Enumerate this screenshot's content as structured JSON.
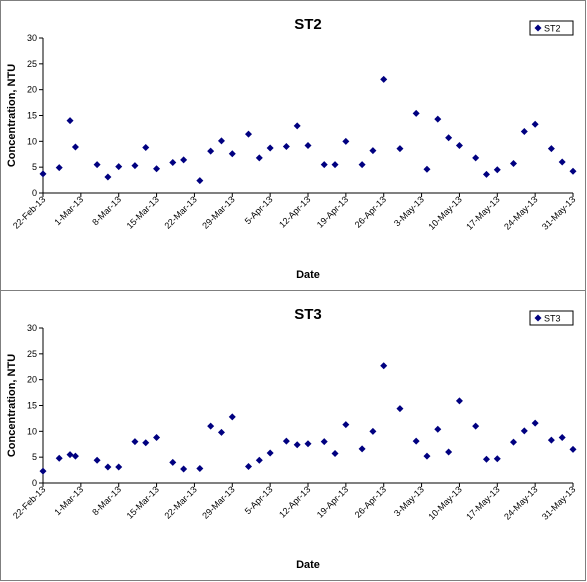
{
  "chart_data": [
    {
      "type": "scatter",
      "title": "ST2",
      "xlabel": "Date",
      "ylabel": "Concentration, NTU",
      "ylim": [
        0,
        30
      ],
      "yticks": [
        0,
        5,
        10,
        15,
        20,
        25,
        30
      ],
      "xlim": [
        "2013-02-22",
        "2013-05-31"
      ],
      "xtick_labels": [
        "22-Feb-13",
        "1-Mar-13",
        "8-Mar-13",
        "15-Mar-13",
        "22-Mar-13",
        "29-Mar-13",
        "5-Apr-13",
        "12-Apr-13",
        "19-Apr-13",
        "26-Apr-13",
        "3-May-13",
        "10-May-13",
        "17-May-13",
        "24-May-13",
        "31-May-13"
      ],
      "grid": false,
      "legend_position": "top-right",
      "marker_color": "#000080",
      "series": [
        {
          "name": "ST2",
          "x": [
            "2013-02-22",
            "2013-02-25",
            "2013-02-27",
            "2013-02-28",
            "2013-03-04",
            "2013-03-06",
            "2013-03-08",
            "2013-03-11",
            "2013-03-13",
            "2013-03-15",
            "2013-03-18",
            "2013-03-20",
            "2013-03-23",
            "2013-03-25",
            "2013-03-27",
            "2013-03-29",
            "2013-04-01",
            "2013-04-03",
            "2013-04-05",
            "2013-04-08",
            "2013-04-10",
            "2013-04-12",
            "2013-04-15",
            "2013-04-17",
            "2013-04-19",
            "2013-04-22",
            "2013-04-24",
            "2013-04-26",
            "2013-04-29",
            "2013-05-02",
            "2013-05-04",
            "2013-05-06",
            "2013-05-08",
            "2013-05-10",
            "2013-05-13",
            "2013-05-15",
            "2013-05-17",
            "2013-05-20",
            "2013-05-22",
            "2013-05-24",
            "2013-05-27",
            "2013-05-29",
            "2013-05-31"
          ],
          "y": [
            3.7,
            4.9,
            14.0,
            8.9,
            5.5,
            3.1,
            5.1,
            5.3,
            8.8,
            4.7,
            5.9,
            6.4,
            2.4,
            8.1,
            10.1,
            7.6,
            11.4,
            6.8,
            8.7,
            9.0,
            13.0,
            9.2,
            5.5,
            5.5,
            10.0,
            5.5,
            8.2,
            22.0,
            8.6,
            15.4,
            4.6,
            14.3,
            10.7,
            9.2,
            6.8,
            3.6,
            4.5,
            5.7,
            11.9,
            13.3,
            8.6,
            6.0,
            4.2
          ]
        }
      ]
    },
    {
      "type": "scatter",
      "title": "ST3",
      "xlabel": "Date",
      "ylabel": "Concentration, NTU",
      "ylim": [
        0,
        30
      ],
      "yticks": [
        0,
        5,
        10,
        15,
        20,
        25,
        30
      ],
      "xlim": [
        "2013-02-22",
        "2013-05-31"
      ],
      "xtick_labels": [
        "22-Feb-13",
        "1-Mar-13",
        "8-Mar-13",
        "15-Mar-13",
        "22-Mar-13",
        "29-Mar-13",
        "5-Apr-13",
        "12-Apr-13",
        "19-Apr-13",
        "26-Apr-13",
        "3-May-13",
        "10-May-13",
        "17-May-13",
        "24-May-13",
        "31-May-13"
      ],
      "grid": false,
      "legend_position": "top-right",
      "marker_color": "#000080",
      "series": [
        {
          "name": "ST3",
          "x": [
            "2013-02-22",
            "2013-02-25",
            "2013-02-27",
            "2013-02-28",
            "2013-03-04",
            "2013-03-06",
            "2013-03-08",
            "2013-03-11",
            "2013-03-13",
            "2013-03-15",
            "2013-03-18",
            "2013-03-20",
            "2013-03-23",
            "2013-03-25",
            "2013-03-27",
            "2013-03-29",
            "2013-04-01",
            "2013-04-03",
            "2013-04-05",
            "2013-04-08",
            "2013-04-10",
            "2013-04-12",
            "2013-04-15",
            "2013-04-17",
            "2013-04-19",
            "2013-04-22",
            "2013-04-24",
            "2013-04-26",
            "2013-04-29",
            "2013-05-02",
            "2013-05-04",
            "2013-05-06",
            "2013-05-08",
            "2013-05-10",
            "2013-05-13",
            "2013-05-15",
            "2013-05-17",
            "2013-05-20",
            "2013-05-22",
            "2013-05-24",
            "2013-05-27",
            "2013-05-29",
            "2013-05-31"
          ],
          "y": [
            2.3,
            4.8,
            5.5,
            5.2,
            4.4,
            3.1,
            3.1,
            8.0,
            7.8,
            8.8,
            4.0,
            2.7,
            2.8,
            11.0,
            9.8,
            12.8,
            3.2,
            4.4,
            5.8,
            8.1,
            7.4,
            7.6,
            8.0,
            5.7,
            11.3,
            6.6,
            10.0,
            22.7,
            14.4,
            8.1,
            5.2,
            10.4,
            6.0,
            15.9,
            11.0,
            4.6,
            4.7,
            7.9,
            10.1,
            11.6,
            8.3,
            8.8,
            6.5
          ]
        }
      ]
    }
  ]
}
